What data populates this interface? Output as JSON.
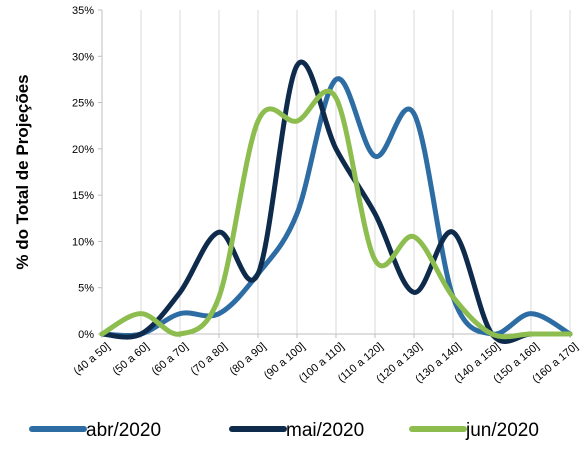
{
  "chart_data": {
    "type": "line",
    "title": "",
    "xlabel": "",
    "ylabel": "% do Total de Projeções",
    "categories": [
      "(40 a 50]",
      "(50 a 60]",
      "(60 a 70]",
      "(70 a 80]",
      "(80 a 90]",
      "(90 a 100]",
      "(100 a 110]",
      "(110 a 120]",
      "(120 a 130]",
      "(130 a 140]",
      "(140 a 150]",
      "(150 a 160]",
      "(160 a 170]"
    ],
    "y_ticks": [
      "0%",
      "5%",
      "10%",
      "15%",
      "20%",
      "25%",
      "30%",
      "35%"
    ],
    "ylim": [
      0,
      35
    ],
    "grid": "vertical",
    "legend_position": "bottom",
    "smooth": true,
    "series": [
      {
        "name": "abr/2020",
        "color": "#2E6DA4",
        "values": [
          0,
          0,
          2.2,
          2.2,
          6.5,
          13,
          27.5,
          19.2,
          23.8,
          4,
          0,
          2.2,
          0
        ]
      },
      {
        "name": "mai/2020",
        "color": "#0F2B4C",
        "values": [
          0,
          0,
          4.5,
          11,
          6.5,
          29,
          20,
          13,
          4.5,
          11,
          0,
          0,
          0
        ]
      },
      {
        "name": "jun/2020",
        "color": "#8DBD4F",
        "values": [
          0,
          2.2,
          0,
          4,
          23,
          23,
          25.5,
          8,
          10.5,
          4,
          0,
          0,
          0
        ]
      }
    ]
  }
}
